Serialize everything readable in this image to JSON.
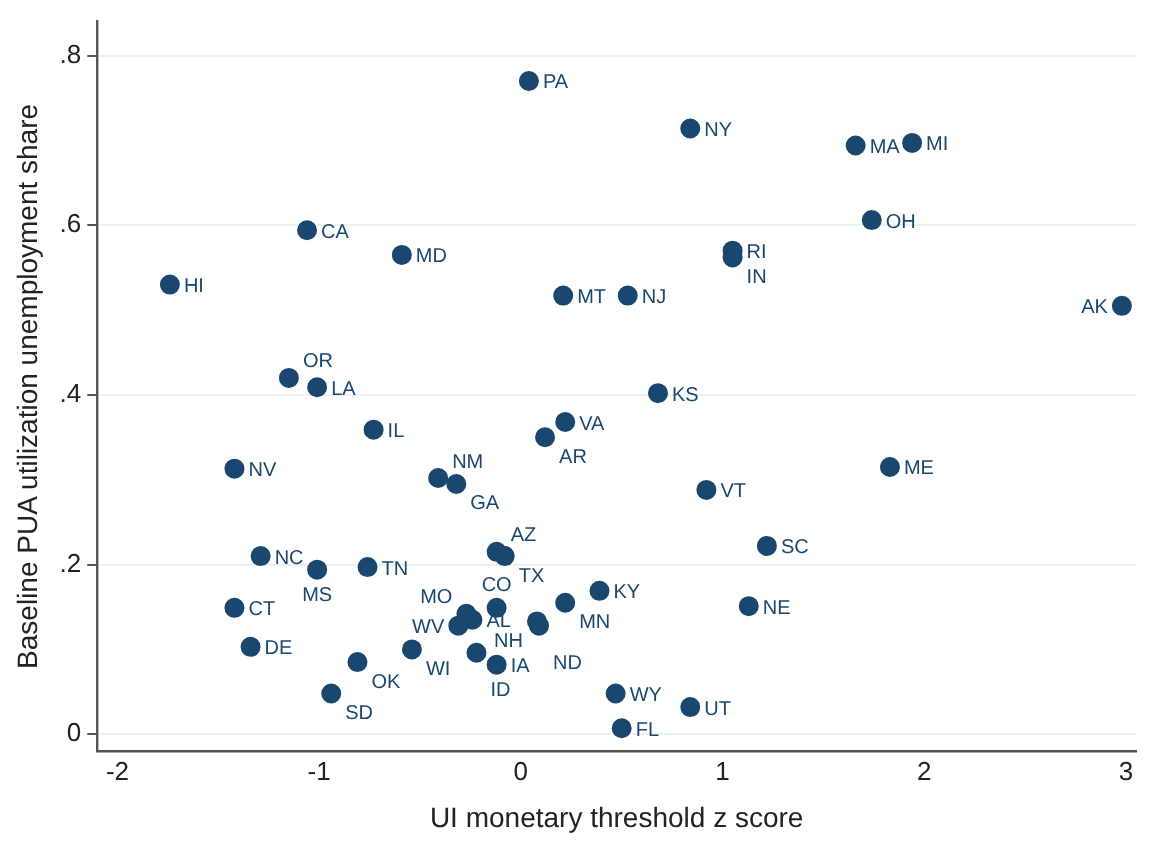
{
  "chart_data": {
    "type": "scatter",
    "xlabel": "UI monetary threshold z score",
    "ylabel": "Baseline PUA utilization unemployment share",
    "x": [
      0.04,
      0.84,
      1.66,
      1.94,
      1.74,
      1.05,
      1.05,
      0.53,
      0.21,
      2.98,
      0.68,
      -1.06,
      -0.59,
      -1.74,
      -1.15,
      -1.01,
      -0.73,
      0.22,
      0.12,
      -1.42,
      -0.41,
      -0.32,
      1.83,
      0.92,
      1.22,
      -1.29,
      -1.01,
      -0.76,
      -0.12,
      -0.08,
      -0.12,
      0.22,
      0.39,
      0.08,
      0.09,
      -0.27,
      -0.24,
      -0.31,
      -1.42,
      -1.34,
      -0.81,
      -0.54,
      -0.22,
      -0.12,
      -0.94,
      1.13,
      0.47,
      0.84,
      0.5
    ],
    "series": [
      {
        "color": "#1a476f",
        "values": [
          0.77,
          0.714,
          0.694,
          0.697,
          0.606,
          0.57,
          0.562,
          0.517,
          0.517,
          0.505,
          0.402,
          0.594,
          0.565,
          0.53,
          0.42,
          0.409,
          0.359,
          0.368,
          0.35,
          0.313,
          0.302,
          0.295,
          0.315,
          0.288,
          0.222,
          0.21,
          0.194,
          0.197,
          0.215,
          0.21,
          0.149,
          0.155,
          0.169,
          0.133,
          0.128,
          0.142,
          0.135,
          0.128,
          0.149,
          0.103,
          0.085,
          0.1,
          0.096,
          0.082,
          0.048,
          0.151,
          0.048,
          0.032,
          0.007
        ]
      }
    ],
    "annotations": [
      {
        "text": "PA",
        "x": 0.04,
        "y": 0.77
      },
      {
        "text": "NY",
        "x": 0.84,
        "y": 0.714
      },
      {
        "text": "MA",
        "x": 1.66,
        "y": 0.694
      },
      {
        "text": "MI",
        "x": 1.94,
        "y": 0.697
      },
      {
        "text": "OH",
        "x": 1.74,
        "y": 0.606
      },
      {
        "text": "RI",
        "x": 1.05,
        "y": 0.57
      },
      {
        "text": "IN",
        "x": 1.05,
        "y": 0.562
      },
      {
        "text": "NJ",
        "x": 0.53,
        "y": 0.517
      },
      {
        "text": "MT",
        "x": 0.21,
        "y": 0.517
      },
      {
        "text": "AK",
        "x": 2.98,
        "y": 0.505
      },
      {
        "text": "KS",
        "x": 0.68,
        "y": 0.402
      },
      {
        "text": "CA",
        "x": -1.06,
        "y": 0.594
      },
      {
        "text": "MD",
        "x": -0.59,
        "y": 0.565
      },
      {
        "text": "HI",
        "x": -1.74,
        "y": 0.53
      },
      {
        "text": "OR",
        "x": -1.15,
        "y": 0.42
      },
      {
        "text": "LA",
        "x": -1.01,
        "y": 0.409
      },
      {
        "text": "IL",
        "x": -0.73,
        "y": 0.359
      },
      {
        "text": "VA",
        "x": 0.22,
        "y": 0.368
      },
      {
        "text": "AR",
        "x": 0.12,
        "y": 0.35
      },
      {
        "text": "NV",
        "x": -1.42,
        "y": 0.313
      },
      {
        "text": "NM",
        "x": -0.41,
        "y": 0.302
      },
      {
        "text": "GA",
        "x": -0.32,
        "y": 0.295
      },
      {
        "text": "ME",
        "x": 1.83,
        "y": 0.315
      },
      {
        "text": "VT",
        "x": 0.92,
        "y": 0.288
      },
      {
        "text": "SC",
        "x": 1.22,
        "y": 0.222
      },
      {
        "text": "NC",
        "x": -1.29,
        "y": 0.21
      },
      {
        "text": "MS",
        "x": -1.01,
        "y": 0.194
      },
      {
        "text": "TN",
        "x": -0.76,
        "y": 0.197
      },
      {
        "text": "AZ",
        "x": -0.12,
        "y": 0.215
      },
      {
        "text": "TX",
        "x": -0.08,
        "y": 0.21
      },
      {
        "text": "CO",
        "x": -0.12,
        "y": 0.149
      },
      {
        "text": "MN",
        "x": 0.22,
        "y": 0.155
      },
      {
        "text": "KY",
        "x": 0.39,
        "y": 0.169
      },
      {
        "text": "NH",
        "x": 0.08,
        "y": 0.133
      },
      {
        "text": "ND",
        "x": 0.09,
        "y": 0.128
      },
      {
        "text": "MO",
        "x": -0.27,
        "y": 0.142
      },
      {
        "text": "AL",
        "x": -0.24,
        "y": 0.135
      },
      {
        "text": "WV",
        "x": -0.31,
        "y": 0.128
      },
      {
        "text": "CT",
        "x": -1.42,
        "y": 0.149
      },
      {
        "text": "DE",
        "x": -1.34,
        "y": 0.103
      },
      {
        "text": "OK",
        "x": -0.81,
        "y": 0.085
      },
      {
        "text": "WI",
        "x": -0.54,
        "y": 0.1
      },
      {
        "text": "ID",
        "x": -0.22,
        "y": 0.096
      },
      {
        "text": "IA",
        "x": -0.12,
        "y": 0.082
      },
      {
        "text": "SD",
        "x": -0.94,
        "y": 0.048
      },
      {
        "text": "NE",
        "x": 1.13,
        "y": 0.151
      },
      {
        "text": "WY",
        "x": 0.47,
        "y": 0.048
      },
      {
        "text": "UT",
        "x": 0.84,
        "y": 0.032
      },
      {
        "text": "FL",
        "x": 0.5,
        "y": 0.007
      }
    ],
    "xlim": [
      -2.1,
      3.05
    ],
    "ylim": [
      -0.02,
      0.84
    ],
    "xticks": [
      -2,
      -1,
      0,
      1,
      2,
      3
    ],
    "yticks": [
      {
        "value": 0,
        "label": "0"
      },
      {
        "value": 0.2,
        "label": ".2"
      },
      {
        "value": 0.4,
        "label": ".4"
      },
      {
        "value": 0.6,
        "label": ".6"
      },
      {
        "value": 0.8,
        "label": ".8"
      }
    ],
    "grid": "y",
    "marker": "circle",
    "legend": false
  }
}
